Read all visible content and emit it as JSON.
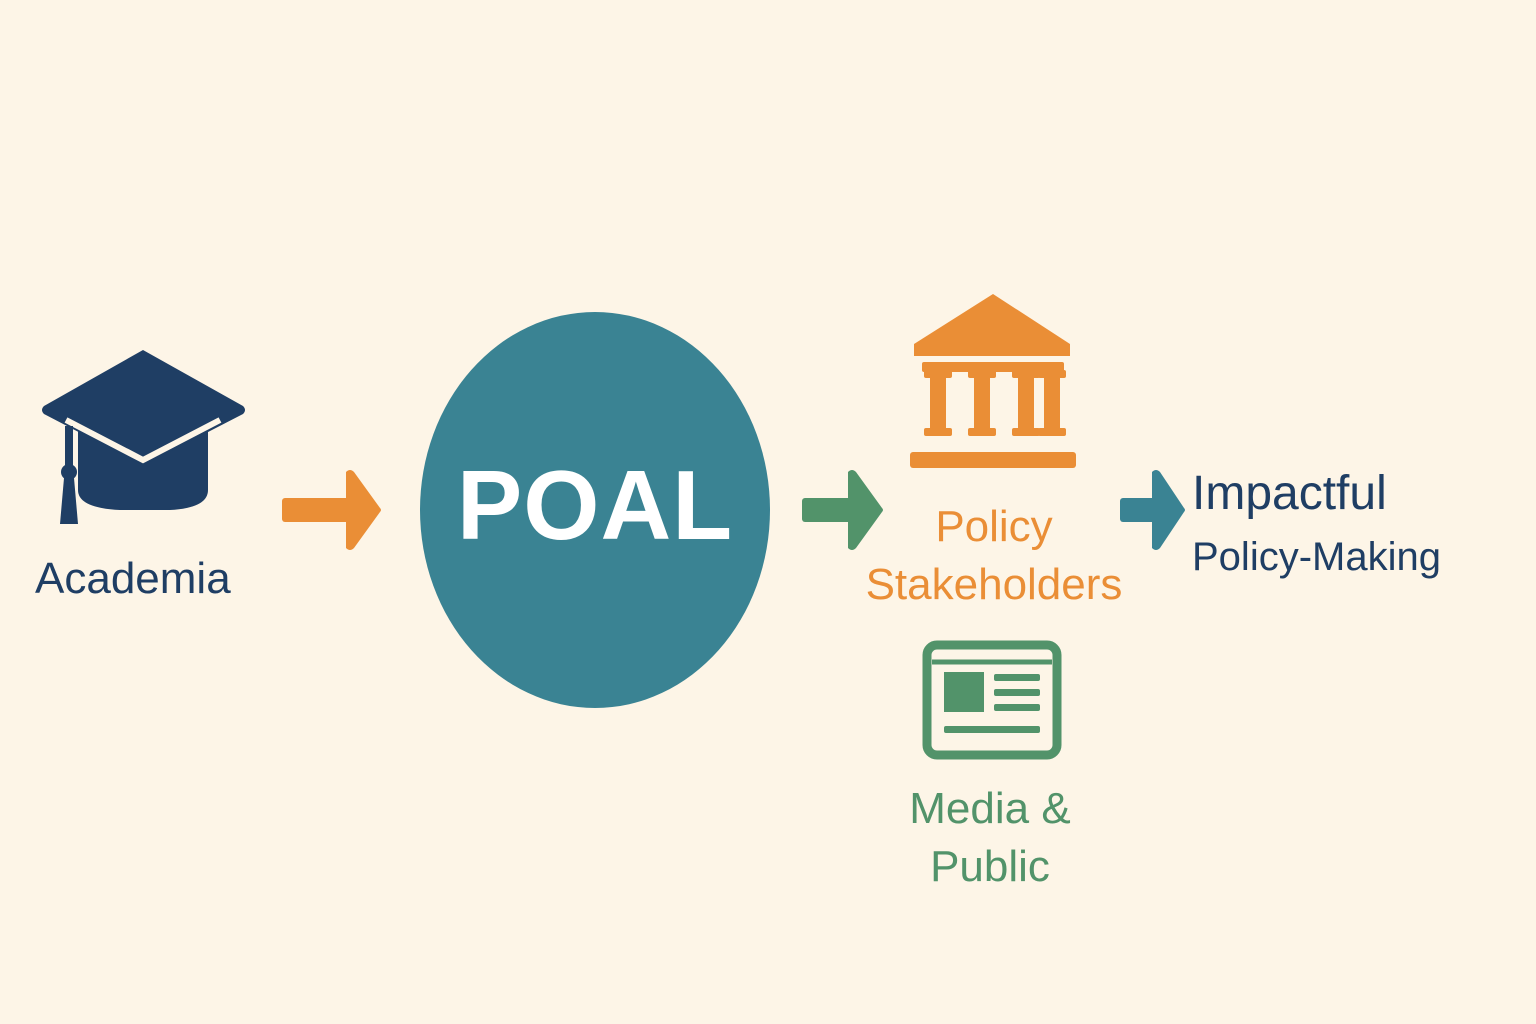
{
  "nodes": {
    "academia": {
      "label": "Academia",
      "icon": "graduation-cap-icon"
    },
    "poal": {
      "label": "POAL"
    },
    "policy_stakeholders": {
      "label": "Policy Stakeholders",
      "icon": "government-building-icon"
    },
    "media_public": {
      "label": "Media & Public",
      "icon": "newspaper-icon"
    },
    "impactful": {
      "line1": "Impactful",
      "line2": "Policy-Making"
    }
  },
  "colors": {
    "background": "#fdf5e7",
    "navy": "#1f3e64",
    "teal": "#3a8393",
    "orange": "#ea8e36",
    "green": "#52936a"
  },
  "edges": [
    {
      "from": "academia",
      "to": "poal",
      "color": "#ea8e36"
    },
    {
      "from": "poal",
      "to": "policy_stakeholders",
      "color": "#52936a"
    },
    {
      "from": "policy_stakeholders",
      "to": "impactful",
      "color": "#3a8393"
    }
  ]
}
